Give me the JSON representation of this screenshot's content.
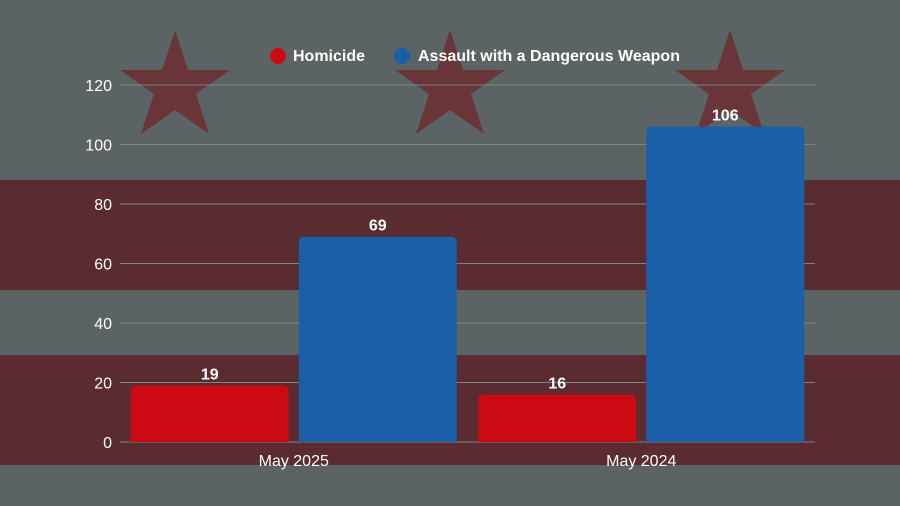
{
  "colors": {
    "homicide": "#cc0a14",
    "assault": "#1b5fa8",
    "background": "#5b6365",
    "flag_red": "#5a2b30",
    "grid": "#7c8486",
    "text": "#ffffff"
  },
  "chart_data": {
    "type": "bar",
    "categories": [
      "May 2025",
      "May 2024"
    ],
    "series": [
      {
        "name": "Homicide",
        "values": [
          19,
          16
        ],
        "color": "#cc0a14"
      },
      {
        "name": "Assault with a Dangerous Weapon",
        "values": [
          69,
          106
        ],
        "color": "#1b5fa8"
      }
    ],
    "yticks": [
      0,
      20,
      40,
      60,
      80,
      100,
      120
    ],
    "ylim": [
      0,
      120
    ],
    "grid": true,
    "legend_position": "top-center",
    "data_labels": true
  }
}
